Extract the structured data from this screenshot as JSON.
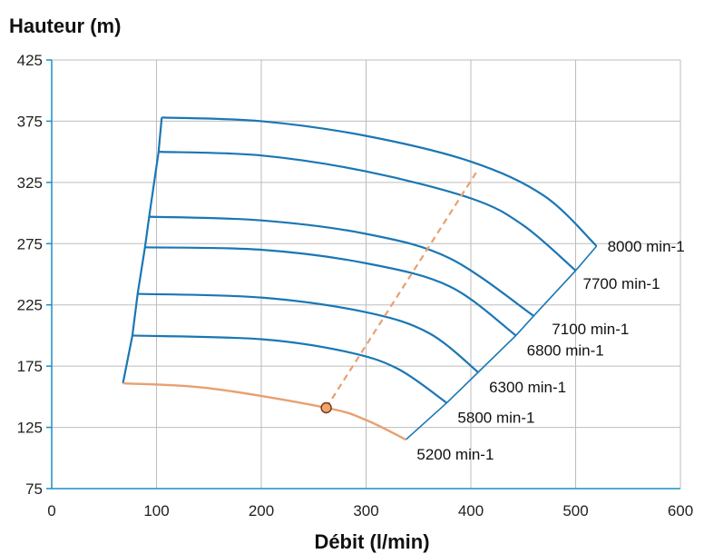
{
  "chart_data": {
    "type": "line",
    "title": "",
    "ylabel": "Hauteur (m)",
    "xlabel": "Débit (l/min)",
    "xlim": [
      0,
      600
    ],
    "ylim": [
      75,
      425
    ],
    "xticks": [
      0,
      100,
      200,
      300,
      400,
      500,
      600
    ],
    "yticks": [
      75,
      125,
      175,
      225,
      275,
      325,
      375,
      425
    ],
    "grid": true,
    "colors": {
      "speed_curves": "#1a77b5",
      "highlight_curve": "#e8a070",
      "operating_line": "#e8a070",
      "operating_point": "#f4a26a",
      "axis": "#1a8fc7"
    },
    "series": [
      {
        "name": "8000 min-1",
        "x": [
          105,
          200,
          300,
          400,
          470,
          520
        ],
        "y": [
          378,
          375,
          363,
          342,
          314,
          273
        ]
      },
      {
        "name": "7700 min-1",
        "x": [
          102,
          200,
          300,
          400,
          450,
          500
        ],
        "y": [
          350,
          347,
          334,
          312,
          290,
          253
        ]
      },
      {
        "name": "7100 min-1",
        "x": [
          93,
          200,
          300,
          380,
          460
        ],
        "y": [
          297,
          294,
          283,
          263,
          216
        ]
      },
      {
        "name": "6800 min-1",
        "x": [
          89,
          200,
          300,
          380,
          443
        ],
        "y": [
          272,
          270,
          259,
          240,
          200
        ]
      },
      {
        "name": "6300 min-1",
        "x": [
          82,
          200,
          300,
          360,
          407
        ],
        "y": [
          234,
          231,
          219,
          202,
          170
        ]
      },
      {
        "name": "5800 min-1",
        "x": [
          77,
          200,
          280,
          330,
          377
        ],
        "y": [
          200,
          197,
          187,
          173,
          145
        ]
      },
      {
        "name": "5200 min-1",
        "x": [
          68,
          150,
          262,
          300,
          338
        ],
        "y": [
          161,
          157,
          141,
          131,
          115
        ]
      }
    ],
    "left_envelope": {
      "x": [
        105,
        102,
        93,
        89,
        82,
        77,
        68
      ],
      "y": [
        378,
        350,
        297,
        272,
        234,
        200,
        161
      ]
    },
    "operating_line": {
      "x": [
        262,
        405
      ],
      "y": [
        141,
        333
      ]
    },
    "operating_point": {
      "x": 262,
      "y": 141
    }
  }
}
